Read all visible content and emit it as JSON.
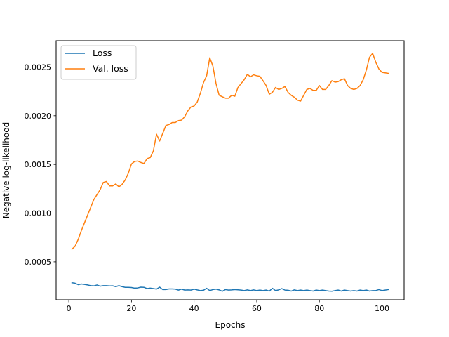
{
  "chart_data": {
    "type": "line",
    "title": "",
    "xlabel": "Epochs",
    "ylabel": "Negative log-likelihood",
    "xlim": [
      -4.05,
      107.05
    ],
    "ylim": [
      0.00011,
      0.00277
    ],
    "x_ticks": [
      0,
      20,
      40,
      60,
      80,
      100
    ],
    "x_tick_labels": [
      "0",
      "20",
      "40",
      "60",
      "80",
      "100"
    ],
    "y_ticks": [
      0.0005,
      0.001,
      0.0015,
      0.002,
      0.0025
    ],
    "y_tick_labels": [
      "0.0005",
      "0.0010",
      "0.0015",
      "0.0020",
      "0.0025"
    ],
    "grid": false,
    "legend_position": "top-left",
    "x": [
      1,
      2,
      3,
      4,
      5,
      6,
      7,
      8,
      9,
      10,
      11,
      12,
      13,
      14,
      15,
      16,
      17,
      18,
      19,
      20,
      21,
      22,
      23,
      24,
      25,
      26,
      27,
      28,
      29,
      30,
      31,
      32,
      33,
      34,
      35,
      36,
      37,
      38,
      39,
      40,
      41,
      42,
      43,
      44,
      45,
      46,
      47,
      48,
      49,
      50,
      51,
      52,
      53,
      54,
      55,
      56,
      57,
      58,
      59,
      60,
      61,
      62,
      63,
      64,
      65,
      66,
      67,
      68,
      69,
      70,
      71,
      72,
      73,
      74,
      75,
      76,
      77,
      78,
      79,
      80,
      81,
      82,
      83,
      84,
      85,
      86,
      87,
      88,
      89,
      90,
      91,
      92,
      93,
      94,
      95,
      96,
      97,
      98,
      99,
      100,
      101,
      102
    ],
    "series": [
      {
        "name": "Loss",
        "color": "#1f77b4",
        "values": [
          0.000285,
          0.00028,
          0.000265,
          0.000272,
          0.000268,
          0.000262,
          0.000255,
          0.000253,
          0.000262,
          0.00025,
          0.000255,
          0.000255,
          0.000252,
          0.000253,
          0.000245,
          0.000255,
          0.000245,
          0.000238,
          0.000238,
          0.000236,
          0.00023,
          0.000232,
          0.00024,
          0.000238,
          0.000225,
          0.00023,
          0.000225,
          0.00022,
          0.00024,
          0.000215,
          0.000215,
          0.000222,
          0.000222,
          0.00022,
          0.00021,
          0.00022,
          0.00021,
          0.000212,
          0.00021,
          0.00022,
          0.000212,
          0.000205,
          0.000208,
          0.000228,
          0.000205,
          0.000215,
          0.00022,
          0.000212,
          0.000198,
          0.000215,
          0.00021,
          0.000212,
          0.000215,
          0.000213,
          0.00021,
          0.000205,
          0.000212,
          0.000205,
          0.000212,
          0.000205,
          0.00021,
          0.000205,
          0.00021,
          0.0002,
          0.000228,
          0.000205,
          0.000212,
          0.000225,
          0.00021,
          0.000208,
          0.0002,
          0.000212,
          0.000205,
          0.00021,
          0.000205,
          0.00021,
          0.000205,
          0.0002,
          0.00021,
          0.000205,
          0.00021,
          0.000205,
          0.0002,
          0.000198,
          0.000205,
          0.00021,
          0.0002,
          0.00021,
          0.000205,
          0.0002,
          0.000205,
          0.0002,
          0.00021,
          0.000205,
          0.00021,
          0.0002,
          0.000205,
          0.000205,
          0.000215,
          0.000205,
          0.00021,
          0.000215
        ]
      },
      {
        "name": "Val. loss",
        "color": "#ff7f0e",
        "values": [
          0.00063,
          0.00066,
          0.00073,
          0.00082,
          0.0009,
          0.00098,
          0.00106,
          0.00114,
          0.00119,
          0.00124,
          0.001315,
          0.001325,
          0.00128,
          0.00128,
          0.0013,
          0.00127,
          0.001295,
          0.00134,
          0.00141,
          0.001505,
          0.00153,
          0.001535,
          0.00152,
          0.00151,
          0.00156,
          0.00157,
          0.00164,
          0.00181,
          0.00174,
          0.00182,
          0.0019,
          0.00191,
          0.00193,
          0.00193,
          0.00195,
          0.001955,
          0.00199,
          0.00205,
          0.00209,
          0.0021,
          0.00214,
          0.00223,
          0.00234,
          0.00241,
          0.002595,
          0.00251,
          0.00233,
          0.00221,
          0.002195,
          0.00218,
          0.00218,
          0.00221,
          0.0022,
          0.00229,
          0.00233,
          0.00237,
          0.002425,
          0.0024,
          0.00242,
          0.00241,
          0.002405,
          0.00236,
          0.00231,
          0.00222,
          0.00224,
          0.00229,
          0.00227,
          0.00228,
          0.0023,
          0.00224,
          0.00221,
          0.00219,
          0.00216,
          0.00215,
          0.00221,
          0.00227,
          0.00228,
          0.00226,
          0.00226,
          0.00231,
          0.00227,
          0.00227,
          0.00231,
          0.00236,
          0.002345,
          0.00235,
          0.00237,
          0.00238,
          0.00231,
          0.00228,
          0.00227,
          0.00228,
          0.00231,
          0.00237,
          0.00247,
          0.0026,
          0.00264,
          0.00255,
          0.00248,
          0.002445,
          0.00244,
          0.002435
        ]
      }
    ]
  }
}
